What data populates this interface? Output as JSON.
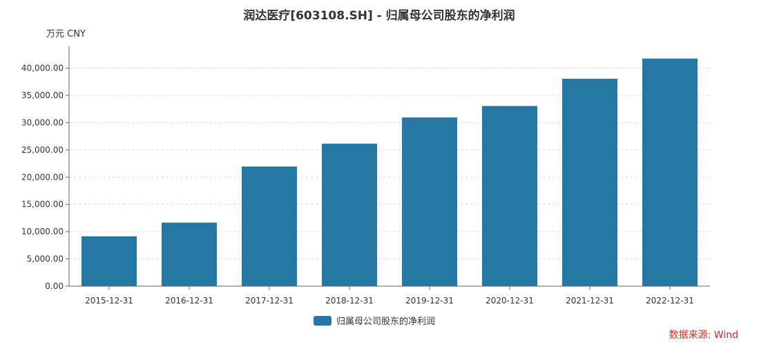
{
  "chart_data": {
    "type": "bar",
    "title": "润达医疗[603108.SH] - 归属母公司股东的净利润",
    "unit_label": "万元  CNY",
    "categories": [
      "2015-12-31",
      "2016-12-31",
      "2017-12-31",
      "2018-12-31",
      "2019-12-31",
      "2020-12-31",
      "2021-12-31",
      "2022-12-31"
    ],
    "series": [
      {
        "name": "归属母公司股东的净利润",
        "color": "#2577a4",
        "values": [
          9150,
          11650,
          21950,
          26150,
          30950,
          33050,
          38050,
          41750
        ]
      }
    ],
    "y_ticks": [
      "0.00",
      "5,000.00",
      "10,000.00",
      "15,000.00",
      "20,000.00",
      "25,000.00",
      "30,000.00",
      "35,000.00",
      "40,000.00"
    ],
    "ylim": [
      0,
      44000
    ],
    "grid": "horizontal dashed",
    "legend": "bottom-center",
    "source": "数据来源: Wind"
  }
}
